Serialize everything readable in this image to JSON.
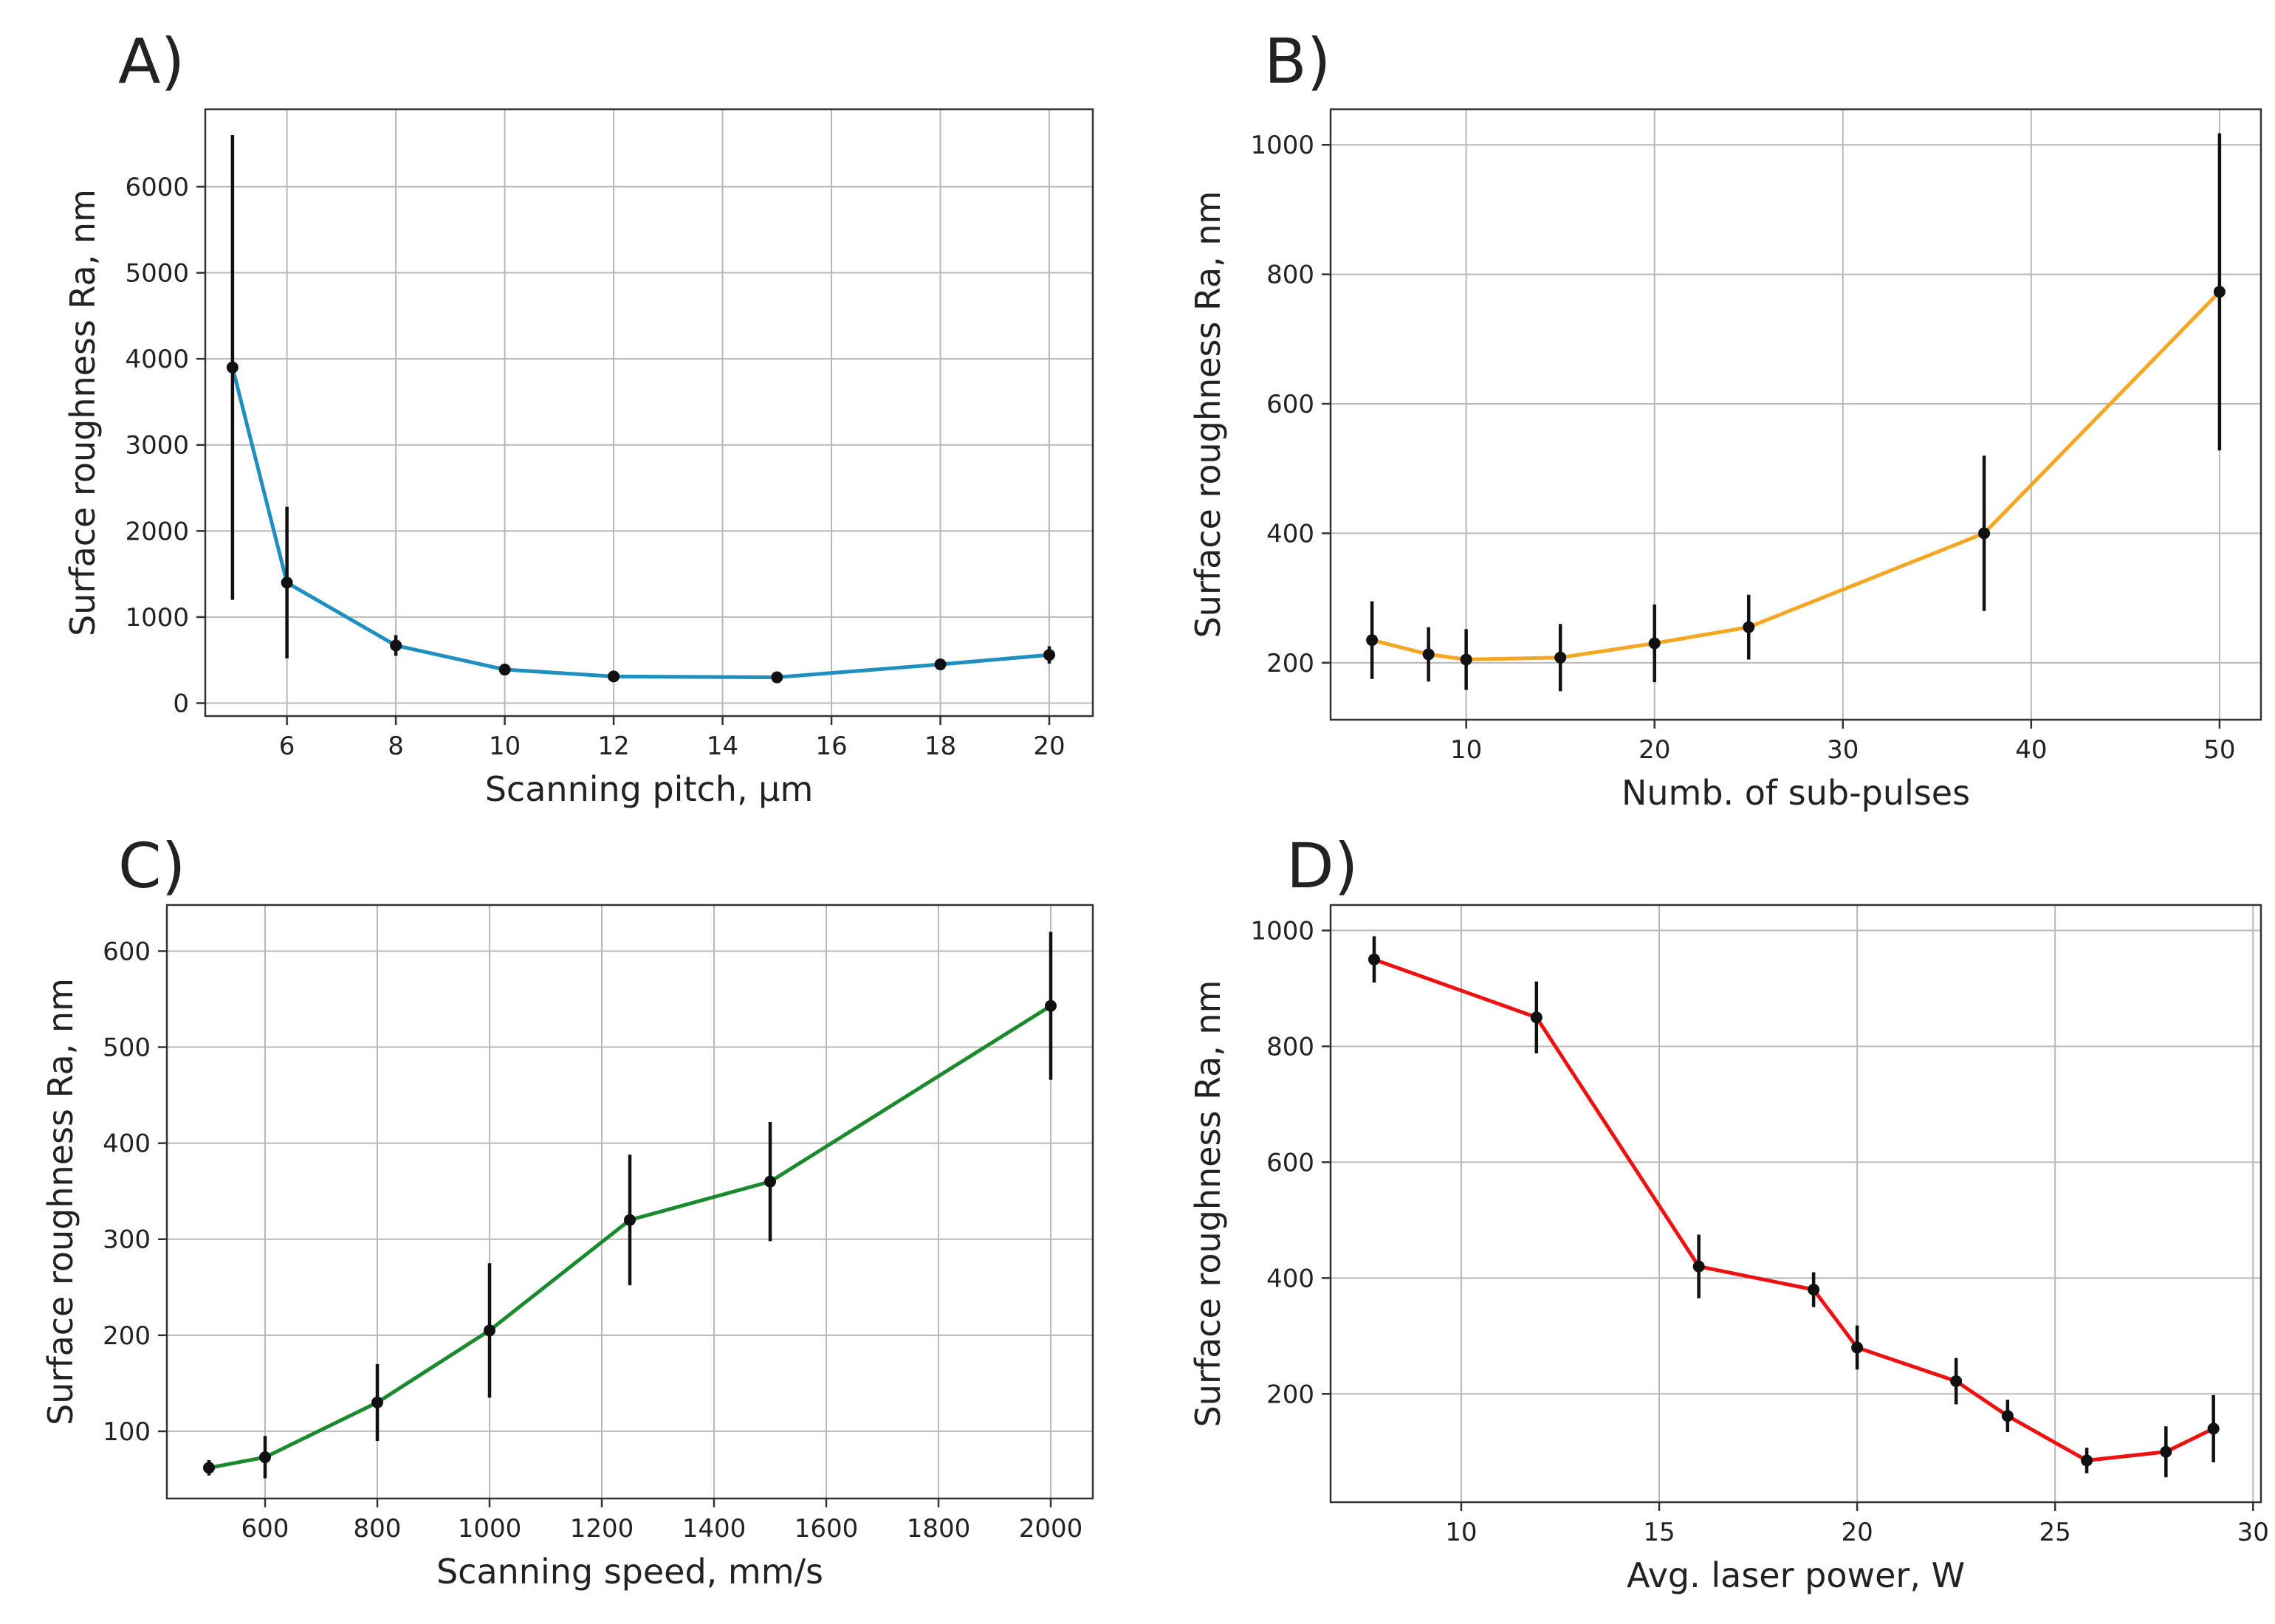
{
  "chart_data": [
    {
      "id": "A",
      "panel_label": "A)",
      "type": "line",
      "xlabel": "Scanning pitch, µm",
      "ylabel": "Surface roughness Ra, nm",
      "xlim": [
        4.5,
        20.8
      ],
      "ylim": [
        -150,
        6900
      ],
      "xticks": [
        6,
        8,
        10,
        12,
        14,
        16,
        18,
        20
      ],
      "yticks": [
        0,
        1000,
        2000,
        3000,
        4000,
        5000,
        6000
      ],
      "grid": true,
      "color": "#1f8fbf",
      "series": [
        {
          "name": "Ra",
          "x": [
            5,
            6,
            8,
            10,
            12,
            15,
            18,
            20
          ],
          "y": [
            3900,
            1400,
            670,
            390,
            310,
            300,
            450,
            560
          ],
          "yerr": [
            2700,
            880,
            120,
            50,
            40,
            40,
            60,
            100
          ]
        }
      ]
    },
    {
      "id": "B",
      "panel_label": "B)",
      "type": "line",
      "xlabel": "Numb. of sub-pulses",
      "ylabel": "Surface roughness Ra, nm",
      "xlim": [
        2.8,
        52.2
      ],
      "ylim": [
        112,
        1055
      ],
      "xticks": [
        10,
        20,
        30,
        40,
        50
      ],
      "yticks": [
        200,
        400,
        600,
        800,
        1000
      ],
      "grid": true,
      "color": "#f5a623",
      "series": [
        {
          "name": "Ra",
          "x": [
            5,
            8,
            10,
            15,
            20,
            25,
            37.5,
            50
          ],
          "y": [
            235,
            213,
            205,
            208,
            230,
            255,
            400,
            773
          ],
          "yerr": [
            60,
            42,
            47,
            52,
            60,
            50,
            120,
            245
          ]
        }
      ]
    },
    {
      "id": "C",
      "panel_label": "C)",
      "type": "line",
      "xlabel": "Scanning speed, mm/s",
      "ylabel": "Surface roughness Ra, nm",
      "xlim": [
        425,
        2075
      ],
      "ylim": [
        30,
        648
      ],
      "xticks": [
        600,
        800,
        1000,
        1200,
        1400,
        1600,
        1800,
        2000
      ],
      "yticks": [
        100,
        200,
        300,
        400,
        500,
        600
      ],
      "grid": true,
      "color": "#1b8a2e",
      "series": [
        {
          "name": "Ra",
          "x": [
            500,
            600,
            800,
            1000,
            1250,
            1500,
            2000
          ],
          "y": [
            62,
            73,
            130,
            205,
            320,
            360,
            543
          ],
          "yerr": [
            8,
            22,
            40,
            70,
            68,
            62,
            77
          ]
        }
      ]
    },
    {
      "id": "D",
      "panel_label": "D)",
      "type": "line",
      "xlabel": "Avg. laser power, W",
      "ylabel": "Surface roughness Ra, nm",
      "xlim": [
        6.7,
        30.2
      ],
      "ylim": [
        13,
        1044
      ],
      "xticks": [
        10,
        15,
        20,
        25,
        30
      ],
      "yticks": [
        200,
        400,
        600,
        800,
        1000
      ],
      "grid": true,
      "color": "#ee1111",
      "series": [
        {
          "name": "Ra",
          "x": [
            7.8,
            11.9,
            16,
            18.9,
            20,
            22.5,
            23.8,
            25.8,
            27.8,
            29
          ],
          "y": [
            950,
            850,
            420,
            380,
            280,
            222,
            162,
            85,
            100,
            140
          ],
          "yerr": [
            40,
            62,
            55,
            30,
            38,
            40,
            28,
            22,
            44,
            58
          ]
        }
      ]
    }
  ]
}
